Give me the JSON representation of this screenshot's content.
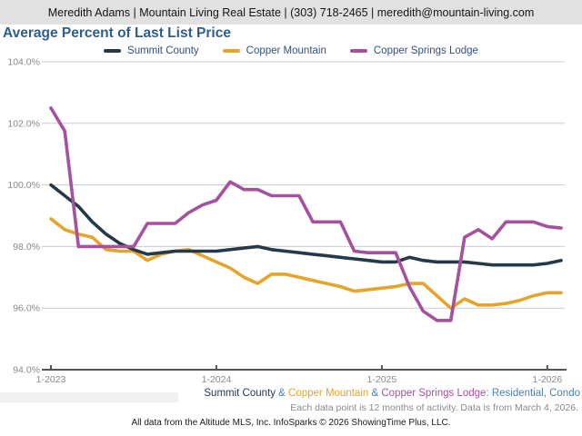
{
  "header": {
    "contact_line": "Meredith Adams | Mountain Living Real Estate | (303) 718-2465 | meredith@mountain-living.com"
  },
  "title": "Average Percent of Last List Price",
  "colors": {
    "summit": "#24394a",
    "copper_mountain": "#e6a42b",
    "copper_springs": "#a5519e",
    "title_blue": "#2e5e8e",
    "legend_text": "#33527d",
    "footer_blue": "#4d80ad",
    "gray_text": "#8a8a8a",
    "axis_label": "#8a8a8a",
    "gridline": "#cccccc",
    "axis_line": "#555555",
    "header_bg": "#e1e1e1",
    "strip_bg": "#f1f1f1"
  },
  "chart_data": {
    "type": "line",
    "title": "Average Percent of Last List Price",
    "grid": true,
    "legend_position": "top",
    "y_min": 94.0,
    "y_max": 104.0,
    "y_tick_values": [
      104,
      102,
      100,
      98,
      96,
      94
    ],
    "y_tick_labels": [
      "104.0%",
      "102.0%",
      "100.0%",
      "98.0%",
      "96.0%",
      "94.0%"
    ],
    "x_tick_indices": [
      0,
      12,
      24,
      36
    ],
    "x_tick_labels": [
      "1-2023",
      "1-2024",
      "1-2025",
      "1-2026"
    ],
    "x": [
      "1-2023",
      "2-2023",
      "3-2023",
      "4-2023",
      "5-2023",
      "6-2023",
      "7-2023",
      "8-2023",
      "9-2023",
      "10-2023",
      "11-2023",
      "12-2023",
      "1-2024",
      "2-2024",
      "3-2024",
      "4-2024",
      "5-2024",
      "6-2024",
      "7-2024",
      "8-2024",
      "9-2024",
      "10-2024",
      "11-2024",
      "12-2024",
      "1-2025",
      "2-2025",
      "3-2025",
      "4-2025",
      "5-2025",
      "6-2025",
      "7-2025",
      "8-2025",
      "9-2025",
      "10-2025",
      "11-2025",
      "12-2025",
      "1-2026",
      "2-2026"
    ],
    "series": [
      {
        "name": "Summit County",
        "color_key": "summit",
        "values": [
          100.0,
          99.65,
          99.3,
          98.8,
          98.4,
          98.1,
          97.9,
          97.75,
          97.8,
          97.85,
          97.85,
          97.85,
          97.85,
          97.9,
          97.95,
          98.0,
          97.9,
          97.85,
          97.8,
          97.75,
          97.7,
          97.65,
          97.6,
          97.55,
          97.5,
          97.5,
          97.65,
          97.55,
          97.5,
          97.5,
          97.5,
          97.45,
          97.4,
          97.4,
          97.4,
          97.4,
          97.45,
          97.55
        ]
      },
      {
        "name": "Copper Mountain",
        "color_key": "copper_mountain",
        "values": [
          98.9,
          98.55,
          98.4,
          98.3,
          97.9,
          97.85,
          97.85,
          97.55,
          97.75,
          97.85,
          97.9,
          97.7,
          97.5,
          97.3,
          97.0,
          96.8,
          97.1,
          97.1,
          97.0,
          96.9,
          96.8,
          96.7,
          96.55,
          96.6,
          96.65,
          96.7,
          96.8,
          96.8,
          96.4,
          96.0,
          96.3,
          96.1,
          96.1,
          96.15,
          96.25,
          96.4,
          96.5,
          96.5
        ]
      },
      {
        "name": "Copper Springs Lodge",
        "color_key": "copper_springs",
        "values": [
          102.5,
          101.75,
          98.0,
          98.0,
          98.0,
          98.0,
          98.0,
          98.75,
          98.75,
          98.75,
          99.1,
          99.35,
          99.5,
          100.1,
          99.85,
          99.85,
          99.65,
          99.65,
          99.65,
          98.8,
          98.8,
          98.8,
          97.85,
          97.8,
          97.8,
          97.8,
          96.7,
          95.9,
          95.6,
          95.6,
          98.3,
          98.55,
          98.25,
          98.8,
          98.8,
          98.8,
          98.65,
          98.6
        ]
      }
    ]
  },
  "footer": {
    "line1_parts": [
      {
        "text": "Summit County",
        "color_key": "summit"
      },
      {
        "text": " & ",
        "color_key": "footer_blue"
      },
      {
        "text": "Copper Mountain",
        "color_key": "copper_mountain"
      },
      {
        "text": " & ",
        "color_key": "footer_blue"
      },
      {
        "text": "Copper Springs Lodge",
        "color_key": "copper_springs"
      },
      {
        "text": ": Residential, Condo",
        "color_key": "footer_blue"
      }
    ],
    "line2": "Each data point is 12 months of activity. Data is from March 4, 2026.",
    "line3": "All data from the Altitude MLS, Inc. InfoSparks © 2026 ShowingTime Plus, LLC."
  }
}
